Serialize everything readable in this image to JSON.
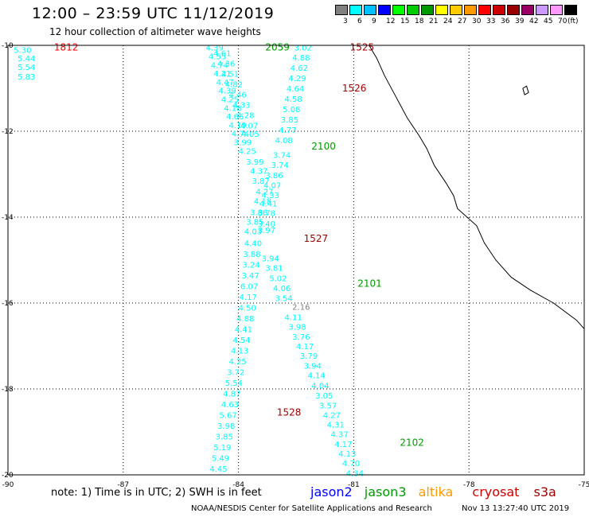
{
  "header": {
    "title": "12:00  –  23:59  UTC  11/12/2019",
    "subtitle": "12 hour collection of altimeter wave heights"
  },
  "colorbar": {
    "unit_label": "(ft)",
    "bins": [
      {
        "label": "3",
        "color": "#808080"
      },
      {
        "label": "6",
        "color": "#00ffff"
      },
      {
        "label": "9",
        "color": "#00bfff"
      },
      {
        "label": "12",
        "color": "#0000ff"
      },
      {
        "label": "15",
        "color": "#00ff00"
      },
      {
        "label": "18",
        "color": "#00cc00"
      },
      {
        "label": "21",
        "color": "#009900"
      },
      {
        "label": "24",
        "color": "#ffff00"
      },
      {
        "label": "27",
        "color": "#ffcc00"
      },
      {
        "label": "30",
        "color": "#ff9900"
      },
      {
        "label": "33",
        "color": "#ff0000"
      },
      {
        "label": "36",
        "color": "#cc0000"
      },
      {
        "label": "39",
        "color": "#990000"
      },
      {
        "label": "42",
        "color": "#990066"
      },
      {
        "label": "45",
        "color": "#cc99ff"
      },
      {
        "label": "70",
        "color": "#ff99ff"
      },
      {
        "label": "",
        "color": "#000000"
      }
    ]
  },
  "map": {
    "lon_min": -90,
    "lon_max": -75,
    "lat_min": -20,
    "lat_max": -10,
    "lon_ticks": [
      {
        "value": -90,
        "label": "-90"
      },
      {
        "value": -87,
        "label": "-87"
      },
      {
        "value": -84,
        "label": "-84"
      },
      {
        "value": -81,
        "label": "-81"
      },
      {
        "value": -78,
        "label": "-78"
      },
      {
        "value": -75,
        "label": "-75"
      }
    ],
    "lat_ticks": [
      {
        "value": -10,
        "label": "-10"
      },
      {
        "value": -12,
        "label": "-12"
      },
      {
        "value": -14,
        "label": "-14"
      },
      {
        "value": -16,
        "label": "-16"
      },
      {
        "value": -18,
        "label": "-18"
      },
      {
        "value": -20,
        "label": "-20"
      }
    ],
    "coastline": [
      [
        -80.6,
        -10.0
      ],
      [
        -80.4,
        -10.3
      ],
      [
        -80.2,
        -10.7
      ],
      [
        -79.9,
        -11.2
      ],
      [
        -79.6,
        -11.7
      ],
      [
        -79.3,
        -12.1
      ],
      [
        -79.1,
        -12.4
      ],
      [
        -78.9,
        -12.8
      ],
      [
        -78.6,
        -13.2
      ],
      [
        -78.4,
        -13.5
      ],
      [
        -78.3,
        -13.8
      ],
      [
        -77.8,
        -14.2
      ],
      [
        -77.6,
        -14.6
      ],
      [
        -77.3,
        -15.0
      ],
      [
        -76.9,
        -15.4
      ],
      [
        -76.4,
        -15.7
      ],
      [
        -75.8,
        -16.0
      ],
      [
        -75.2,
        -16.4
      ],
      [
        -75.0,
        -16.6
      ]
    ],
    "island": [
      [
        -76.6,
        -11.0
      ],
      [
        -76.5,
        -10.95
      ],
      [
        -76.45,
        -11.1
      ],
      [
        -76.55,
        -11.15
      ],
      [
        -76.6,
        -11.0
      ]
    ]
  },
  "tracks": [
    {
      "satellite": "altika",
      "color": "#00ffff",
      "points": [
        {
          "lon": -89.85,
          "lat": -10.1,
          "value": "5.30"
        },
        {
          "lon": -89.75,
          "lat": -10.3,
          "value": "5.44"
        },
        {
          "lon": -89.75,
          "lat": -10.5,
          "value": "5.54"
        },
        {
          "lon": -89.75,
          "lat": -10.72,
          "value": "5.83"
        }
      ]
    },
    {
      "satellite": "jason3-a",
      "color": "#00ffff",
      "points": [
        {
          "lon": -84.85,
          "lat": -10.05,
          "value": "4.39"
        },
        {
          "lon": -84.78,
          "lat": -10.25,
          "value": "4.55"
        },
        {
          "lon": -84.72,
          "lat": -10.45,
          "value": "4.74"
        },
        {
          "lon": -84.65,
          "lat": -10.65,
          "value": "4.21"
        },
        {
          "lon": -84.58,
          "lat": -10.85,
          "value": "4.47"
        },
        {
          "lon": -84.52,
          "lat": -11.05,
          "value": "4.39"
        },
        {
          "lon": -84.45,
          "lat": -11.25,
          "value": "4.25"
        },
        {
          "lon": -84.38,
          "lat": -11.45,
          "value": "4.18"
        },
        {
          "lon": -84.32,
          "lat": -11.65,
          "value": "4.66"
        },
        {
          "lon": -84.25,
          "lat": -11.85,
          "value": "4.19"
        },
        {
          "lon": -84.18,
          "lat": -12.05,
          "value": "4.74"
        },
        {
          "lon": -84.12,
          "lat": -12.25,
          "value": "3.99"
        }
      ]
    },
    {
      "satellite": "jason3-b",
      "color": "#00ffff",
      "points": [
        {
          "lon": -84.65,
          "lat": -10.18,
          "value": "4.61"
        },
        {
          "lon": -84.55,
          "lat": -10.42,
          "value": "4.36"
        },
        {
          "lon": -84.45,
          "lat": -10.66,
          "value": "4.51"
        },
        {
          "lon": -84.35,
          "lat": -10.9,
          "value": "4.82"
        },
        {
          "lon": -84.25,
          "lat": -11.14,
          "value": "4.46"
        },
        {
          "lon": -84.15,
          "lat": -11.38,
          "value": "4.33"
        },
        {
          "lon": -84.05,
          "lat": -11.62,
          "value": "4.28"
        },
        {
          "lon": -83.95,
          "lat": -11.86,
          "value": "4.07"
        },
        {
          "lon": -83.92,
          "lat": -12.06,
          "value": "4.05"
        }
      ]
    },
    {
      "satellite": "cryosat",
      "color": "#00ffff",
      "points": [
        {
          "lon": -82.55,
          "lat": -10.05,
          "value": "3.02"
        },
        {
          "lon": -82.6,
          "lat": -10.28,
          "value": "4.88"
        },
        {
          "lon": -82.65,
          "lat": -10.52,
          "value": "4.62"
        },
        {
          "lon": -82.7,
          "lat": -10.76,
          "value": "4.29"
        },
        {
          "lon": -82.75,
          "lat": -11.0,
          "value": "4.64"
        },
        {
          "lon": -82.8,
          "lat": -11.24,
          "value": "4.58"
        },
        {
          "lon": -82.85,
          "lat": -11.48,
          "value": "5.08"
        },
        {
          "lon": -82.9,
          "lat": -11.72,
          "value": "3.85"
        },
        {
          "lon": -82.95,
          "lat": -11.96,
          "value": "4.77"
        },
        {
          "lon": -83.05,
          "lat": -12.2,
          "value": "4.08"
        },
        {
          "lon": -83.1,
          "lat": -12.55,
          "value": "3.74"
        },
        {
          "lon": -83.15,
          "lat": -12.78,
          "value": "3.74"
        },
        {
          "lon": -83.3,
          "lat": -13.02,
          "value": "3.86"
        },
        {
          "lon": -83.35,
          "lat": -13.25,
          "value": "4.07"
        },
        {
          "lon": -83.4,
          "lat": -13.48,
          "value": "4.33"
        },
        {
          "lon": -83.45,
          "lat": -13.68,
          "value": "4.41"
        },
        {
          "lon": -83.5,
          "lat": -13.9,
          "value": "3.78"
        },
        {
          "lon": -83.5,
          "lat": -14.15,
          "value": "3.40"
        },
        {
          "lon": -83.5,
          "lat": -14.3,
          "value": "3.97"
        },
        {
          "lon": -83.4,
          "lat": -14.95,
          "value": "3.94"
        },
        {
          "lon": -83.3,
          "lat": -15.18,
          "value": "3.81"
        },
        {
          "lon": -83.2,
          "lat": -15.42,
          "value": "5.02"
        },
        {
          "lon": -83.1,
          "lat": -15.65,
          "value": "4.06"
        },
        {
          "lon": -83.05,
          "lat": -15.88,
          "value": "3.54"
        },
        {
          "lon": -82.8,
          "lat": -16.32,
          "value": "4.11"
        },
        {
          "lon": -82.7,
          "lat": -16.55,
          "value": "3.98"
        },
        {
          "lon": -82.6,
          "lat": -16.78,
          "value": "3.76"
        },
        {
          "lon": -82.5,
          "lat": -17.0,
          "value": "4.17"
        },
        {
          "lon": -82.4,
          "lat": -17.22,
          "value": "3.79"
        },
        {
          "lon": -82.3,
          "lat": -17.45,
          "value": "3.94"
        },
        {
          "lon": -82.2,
          "lat": -17.68,
          "value": "4.14"
        },
        {
          "lon": -82.1,
          "lat": -17.92,
          "value": "4.04"
        },
        {
          "lon": -82.0,
          "lat": -18.15,
          "value": "3.05"
        },
        {
          "lon": -81.9,
          "lat": -18.38,
          "value": "3.57"
        },
        {
          "lon": -81.8,
          "lat": -18.6,
          "value": "4.27"
        },
        {
          "lon": -81.7,
          "lat": -18.82,
          "value": "4.31"
        },
        {
          "lon": -81.6,
          "lat": -19.05,
          "value": "4.37"
        },
        {
          "lon": -81.5,
          "lat": -19.28,
          "value": "4.17"
        },
        {
          "lon": -81.4,
          "lat": -19.5,
          "value": "4.13"
        },
        {
          "lon": -81.3,
          "lat": -19.72,
          "value": "4.70"
        },
        {
          "lon": -81.2,
          "lat": -19.95,
          "value": "4.34"
        },
        {
          "lon": -81.1,
          "lat": -20.18,
          "value": "4.68"
        },
        {
          "lon": -81.0,
          "lat": -20.4,
          "value": "4.90"
        },
        {
          "lon": -80.9,
          "lat": -20.62,
          "value": "4.51"
        },
        {
          "lon": -80.8,
          "lat": -20.85,
          "value": "4.64"
        }
      ]
    },
    {
      "satellite": "cryosat-gray",
      "color": "#808080",
      "points": [
        {
          "lon": -82.6,
          "lat": -16.08,
          "value": "2.16"
        }
      ]
    },
    {
      "satellite": "jason3-c",
      "color": "#00ffff",
      "points": [
        {
          "lon": -84.0,
          "lat": -12.45,
          "value": "4.25"
        },
        {
          "lon": -83.8,
          "lat": -12.7,
          "value": "3.99"
        },
        {
          "lon": -83.7,
          "lat": -12.92,
          "value": "4.37"
        },
        {
          "lon": -83.65,
          "lat": -13.15,
          "value": "3.87"
        },
        {
          "lon": -83.55,
          "lat": -13.4,
          "value": "4.27"
        },
        {
          "lon": -83.6,
          "lat": -13.62,
          "value": "4.18"
        },
        {
          "lon": -83.7,
          "lat": -13.88,
          "value": "3.86"
        },
        {
          "lon": -83.8,
          "lat": -14.1,
          "value": "3.85"
        },
        {
          "lon": -83.85,
          "lat": -14.32,
          "value": "4.03"
        },
        {
          "lon": -83.85,
          "lat": -14.6,
          "value": "4.40"
        },
        {
          "lon": -83.88,
          "lat": -14.85,
          "value": "3.88"
        },
        {
          "lon": -83.9,
          "lat": -15.1,
          "value": "3.24"
        },
        {
          "lon": -83.92,
          "lat": -15.35,
          "value": "3.47"
        },
        {
          "lon": -83.95,
          "lat": -15.6,
          "value": "6.07"
        },
        {
          "lon": -83.98,
          "lat": -15.85,
          "value": "4.17"
        },
        {
          "lon": -84.0,
          "lat": -16.1,
          "value": "4.50"
        },
        {
          "lon": -84.05,
          "lat": -16.35,
          "value": "4.88"
        },
        {
          "lon": -84.1,
          "lat": -16.6,
          "value": "4.41"
        },
        {
          "lon": -84.15,
          "lat": -16.85,
          "value": "4.54"
        },
        {
          "lon": -84.2,
          "lat": -17.1,
          "value": "4.13"
        },
        {
          "lon": -84.25,
          "lat": -17.35,
          "value": "4.25"
        },
        {
          "lon": -84.3,
          "lat": -17.6,
          "value": "3.72"
        },
        {
          "lon": -84.35,
          "lat": -17.85,
          "value": "5.54"
        },
        {
          "lon": -84.4,
          "lat": -18.1,
          "value": "4.87"
        },
        {
          "lon": -84.45,
          "lat": -18.35,
          "value": "4.63"
        },
        {
          "lon": -84.5,
          "lat": -18.6,
          "value": "5.67"
        },
        {
          "lon": -84.55,
          "lat": -18.85,
          "value": "3.98"
        },
        {
          "lon": -84.6,
          "lat": -19.1,
          "value": "3.85"
        },
        {
          "lon": -84.65,
          "lat": -19.35,
          "value": "5.19"
        },
        {
          "lon": -84.7,
          "lat": -19.6,
          "value": "5.49"
        },
        {
          "lon": -84.75,
          "lat": -19.85,
          "value": "4.45"
        },
        {
          "lon": -84.8,
          "lat": -20.1,
          "value": "5.08"
        },
        {
          "lon": -84.85,
          "lat": -20.35,
          "value": "4.76"
        }
      ]
    }
  ],
  "time_labels": [
    {
      "text": "1812",
      "color": "#ff0000",
      "lon": -88.8,
      "lat": -10.05
    },
    {
      "text": "2059",
      "color": "#009900",
      "lon": -83.3,
      "lat": -10.05
    },
    {
      "text": "1525",
      "color": "#990000",
      "lon": -81.1,
      "lat": -10.05
    },
    {
      "text": "1526",
      "color": "#990000",
      "lon": -81.3,
      "lat": -11.0
    },
    {
      "text": "2100",
      "color": "#009900",
      "lon": -82.1,
      "lat": -12.35
    },
    {
      "text": "1527",
      "color": "#990000",
      "lon": -82.3,
      "lat": -14.5
    },
    {
      "text": "2101",
      "color": "#009900",
      "lon": -80.9,
      "lat": -15.55
    },
    {
      "text": "1528",
      "color": "#990000",
      "lon": -83.0,
      "lat": -18.55
    },
    {
      "text": "2102",
      "color": "#009900",
      "lon": -79.8,
      "lat": -19.25
    }
  ],
  "footer": {
    "note": "note:  1) Time is in UTC;  2) SWH is in feet",
    "legend": [
      {
        "label": "jason2",
        "color": "#0000ff"
      },
      {
        "label": "jason3",
        "color": "#009900"
      },
      {
        "label": "altika",
        "color": "#ff9900"
      },
      {
        "label": "cryosat",
        "color": "#cc0000"
      },
      {
        "label": "s3a",
        "color": "#990000"
      }
    ],
    "credit": "NOAA/NESDIS Center for Satellite Applications and Research",
    "timestamp": "Nov 13 13:27:40 UTC 2019"
  }
}
